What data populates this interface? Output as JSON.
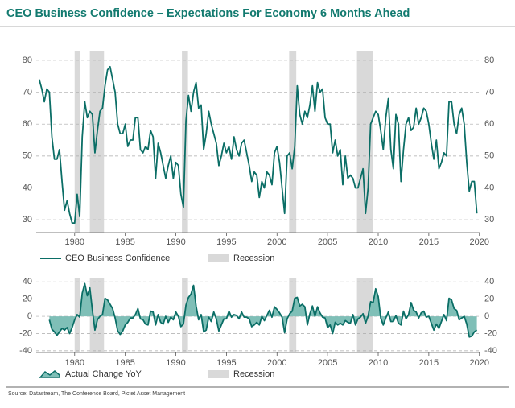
{
  "title": "CEO Business Confidence – Expectations For Economy 6 Months Ahead",
  "source": "Source: Datastream, The Conference Board, Pictet Asset Management",
  "chart_data": [
    {
      "type": "line",
      "recession_label": "Recession",
      "recession_color": "#d9d9d9",
      "recessions": [
        [
          1980.0,
          1980.5
        ],
        [
          1981.5,
          1982.9
        ],
        [
          1990.6,
          1991.2
        ],
        [
          2001.2,
          2001.9
        ],
        [
          2007.9,
          2009.5
        ]
      ],
      "xlim": [
        1976.2,
        2020.1
      ],
      "xticks": [
        1980,
        1985,
        1990,
        1995,
        2000,
        2005,
        2010,
        2015,
        2020
      ],
      "ylim": [
        26,
        83
      ],
      "yticks": [
        30,
        40,
        50,
        60,
        70,
        80
      ],
      "grid": true,
      "x": [
        1976.5,
        1976.75,
        1977,
        1977.25,
        1977.5,
        1977.75,
        1978,
        1978.25,
        1978.5,
        1978.75,
        1979,
        1979.25,
        1979.5,
        1979.75,
        1980,
        1980.25,
        1980.5,
        1980.75,
        1981,
        1981.25,
        1981.5,
        1981.75,
        1982,
        1982.25,
        1982.5,
        1982.75,
        1983,
        1983.25,
        1983.5,
        1983.75,
        1984,
        1984.25,
        1984.5,
        1984.75,
        1985,
        1985.25,
        1985.5,
        1985.75,
        1986,
        1986.25,
        1986.5,
        1986.75,
        1987,
        1987.25,
        1987.5,
        1987.75,
        1988,
        1988.25,
        1988.5,
        1988.75,
        1989,
        1989.25,
        1989.5,
        1989.75,
        1990,
        1990.25,
        1990.5,
        1990.75,
        1991,
        1991.25,
        1991.5,
        1991.75,
        1992,
        1992.25,
        1992.5,
        1992.75,
        1993,
        1993.25,
        1993.5,
        1993.75,
        1994,
        1994.25,
        1994.5,
        1994.75,
        1995,
        1995.25,
        1995.5,
        1995.75,
        1996,
        1996.25,
        1996.5,
        1996.75,
        1997,
        1997.25,
        1997.5,
        1997.75,
        1998,
        1998.25,
        1998.5,
        1998.75,
        1999,
        1999.25,
        1999.5,
        1999.75,
        2000,
        2000.25,
        2000.5,
        2000.75,
        2001,
        2001.25,
        2001.5,
        2001.75,
        2002,
        2002.25,
        2002.5,
        2002.75,
        2003,
        2003.25,
        2003.5,
        2003.75,
        2004,
        2004.25,
        2004.5,
        2004.75,
        2005,
        2005.25,
        2005.5,
        2005.75,
        2006,
        2006.25,
        2006.5,
        2006.75,
        2007,
        2007.25,
        2007.5,
        2007.75,
        2008,
        2008.25,
        2008.5,
        2008.75,
        2009,
        2009.25,
        2009.5,
        2009.75,
        2010,
        2010.25,
        2010.5,
        2010.75,
        2011,
        2011.25,
        2011.5,
        2011.75,
        2012,
        2012.25,
        2012.5,
        2012.75,
        2013,
        2013.25,
        2013.5,
        2013.75,
        2014,
        2014.25,
        2014.5,
        2014.75,
        2015,
        2015.25,
        2015.5,
        2015.75,
        2016,
        2016.25,
        2016.5,
        2016.75,
        2017,
        2017.25,
        2017.5,
        2017.75,
        2018,
        2018.25,
        2018.5,
        2018.75,
        2019,
        2019.25,
        2019.5,
        2019.75
      ],
      "series": [
        {
          "name": "CEO Business Confidence",
          "color": "#0b6e66",
          "values": [
            74,
            71,
            67,
            71,
            70,
            56,
            49,
            49,
            52,
            42,
            33,
            36,
            32,
            29,
            29,
            38,
            31,
            56,
            67,
            62,
            64,
            63,
            51,
            58,
            64,
            65,
            72,
            77,
            78,
            74,
            70,
            60,
            57,
            57,
            60,
            53,
            55,
            55,
            62,
            62,
            52,
            51,
            53,
            52,
            58,
            56,
            43,
            54,
            51,
            47,
            43,
            47,
            50,
            43,
            48,
            47,
            38,
            34,
            61,
            69,
            64,
            70,
            73,
            65,
            66,
            52,
            57,
            64,
            60,
            57,
            54,
            47,
            50,
            54,
            51,
            53,
            49,
            56,
            52,
            50,
            54,
            55,
            51,
            47,
            42,
            45,
            44,
            37,
            42,
            40,
            45,
            44,
            41,
            51,
            53,
            48,
            40,
            32,
            50,
            51,
            46,
            53,
            72,
            63,
            60,
            64,
            62,
            66,
            72,
            64,
            73,
            70,
            71,
            62,
            60,
            60,
            51,
            55,
            50,
            52,
            41,
            50,
            43,
            44,
            43,
            40,
            40,
            43,
            46,
            32,
            40,
            60,
            62,
            64,
            63,
            58,
            52,
            62,
            68,
            52,
            46,
            63,
            60,
            42,
            52,
            60,
            62,
            58,
            59,
            65,
            60,
            62,
            65,
            64,
            60,
            54,
            49,
            55,
            46,
            48,
            51,
            50,
            67,
            67,
            60,
            57,
            63,
            65,
            60,
            48,
            39,
            42,
            42,
            32
          ]
        }
      ]
    },
    {
      "type": "area",
      "recession_label": "Recession",
      "recession_color": "#d9d9d9",
      "recessions": [
        [
          1980.0,
          1980.5
        ],
        [
          1981.5,
          1982.9
        ],
        [
          1990.6,
          1991.2
        ],
        [
          2001.2,
          2001.9
        ],
        [
          2007.9,
          2009.5
        ]
      ],
      "xlim": [
        1976.2,
        2020.1
      ],
      "xticks": [
        1980,
        1985,
        1990,
        1995,
        2000,
        2005,
        2010,
        2015,
        2020
      ],
      "ylim": [
        -42,
        44
      ],
      "yticks": [
        -40,
        -20,
        0,
        20,
        40
      ],
      "grid": true,
      "x": [
        1977.5,
        1977.75,
        1978,
        1978.25,
        1978.5,
        1978.75,
        1979,
        1979.25,
        1979.5,
        1979.75,
        1980,
        1980.25,
        1980.5,
        1980.75,
        1981,
        1981.25,
        1981.5,
        1981.75,
        1982,
        1982.25,
        1982.5,
        1982.75,
        1983,
        1983.25,
        1983.5,
        1983.75,
        1984,
        1984.25,
        1984.5,
        1984.75,
        1985,
        1985.25,
        1985.5,
        1985.75,
        1986,
        1986.25,
        1986.5,
        1986.75,
        1987,
        1987.25,
        1987.5,
        1987.75,
        1988,
        1988.25,
        1988.5,
        1988.75,
        1989,
        1989.25,
        1989.5,
        1989.75,
        1990,
        1990.25,
        1990.5,
        1990.75,
        1991,
        1991.25,
        1991.5,
        1991.75,
        1992,
        1992.25,
        1992.5,
        1992.75,
        1993,
        1993.25,
        1993.5,
        1993.75,
        1994,
        1994.25,
        1994.5,
        1994.75,
        1995,
        1995.25,
        1995.5,
        1995.75,
        1996,
        1996.25,
        1996.5,
        1996.75,
        1997,
        1997.25,
        1997.5,
        1997.75,
        1998,
        1998.25,
        1998.5,
        1998.75,
        1999,
        1999.25,
        1999.5,
        1999.75,
        2000,
        2000.25,
        2000.5,
        2000.75,
        2001,
        2001.25,
        2001.5,
        2001.75,
        2002,
        2002.25,
        2002.5,
        2002.75,
        2003,
        2003.25,
        2003.5,
        2003.75,
        2004,
        2004.25,
        2004.5,
        2004.75,
        2005,
        2005.25,
        2005.5,
        2005.75,
        2006,
        2006.25,
        2006.5,
        2006.75,
        2007,
        2007.25,
        2007.5,
        2007.75,
        2008,
        2008.25,
        2008.5,
        2008.75,
        2009,
        2009.25,
        2009.5,
        2009.75,
        2010,
        2010.25,
        2010.5,
        2010.75,
        2011,
        2011.25,
        2011.5,
        2011.75,
        2012,
        2012.25,
        2012.5,
        2012.75,
        2013,
        2013.25,
        2013.5,
        2013.75,
        2014,
        2014.25,
        2014.5,
        2014.75,
        2015,
        2015.25,
        2015.5,
        2015.75,
        2016,
        2016.25,
        2016.5,
        2016.75,
        2017,
        2017.25,
        2017.5,
        2017.75,
        2018,
        2018.25,
        2018.5,
        2018.75,
        2019,
        2019.25,
        2019.5,
        2019.75
      ],
      "series": [
        {
          "name": "Actual Change YoY",
          "color": "#0b6e66",
          "fill": "#7fbfb7",
          "values": [
            -4,
            -15,
            -18,
            -22,
            -18,
            -14,
            -16,
            -13,
            -20,
            -13,
            -4,
            2,
            -1,
            27,
            38,
            24,
            33,
            7,
            -16,
            -4,
            0,
            2,
            21,
            19,
            14,
            9,
            -2,
            -17,
            -21,
            -17,
            -10,
            -7,
            -2,
            -2,
            2,
            9,
            -3,
            -4,
            -9,
            -10,
            6,
            5,
            -10,
            2,
            -7,
            -9,
            0,
            -7,
            -1,
            -4,
            5,
            0,
            -12,
            -9,
            13,
            22,
            26,
            36,
            12,
            -4,
            2,
            -18,
            -16,
            -1,
            -6,
            5,
            -3,
            -17,
            -10,
            -3,
            -3,
            6,
            -1,
            2,
            1,
            -3,
            5,
            -1,
            -1,
            -3,
            -12,
            -10,
            -7,
            -10,
            0,
            -5,
            1,
            7,
            -1,
            11,
            8,
            4,
            -1,
            -19,
            -3,
            3,
            6,
            21,
            22,
            12,
            14,
            11,
            -10,
            3,
            12,
            0,
            11,
            4,
            -1,
            -2,
            -13,
            -10,
            -20,
            -7,
            -10,
            -8,
            -10,
            -5,
            -7,
            -8,
            2,
            -10,
            -3,
            -1,
            3,
            -8,
            0,
            17,
            16,
            32,
            23,
            -2,
            -10,
            -2,
            5,
            -6,
            -6,
            1,
            -8,
            -10,
            6,
            -3,
            2,
            16,
            7,
            5,
            -2,
            4,
            6,
            -1,
            0,
            -8,
            -16,
            -9,
            -14,
            -6,
            2,
            -5,
            21,
            19,
            9,
            7,
            -4,
            -2,
            0,
            -9,
            -24,
            -23,
            -18,
            -16
          ]
        }
      ]
    }
  ]
}
